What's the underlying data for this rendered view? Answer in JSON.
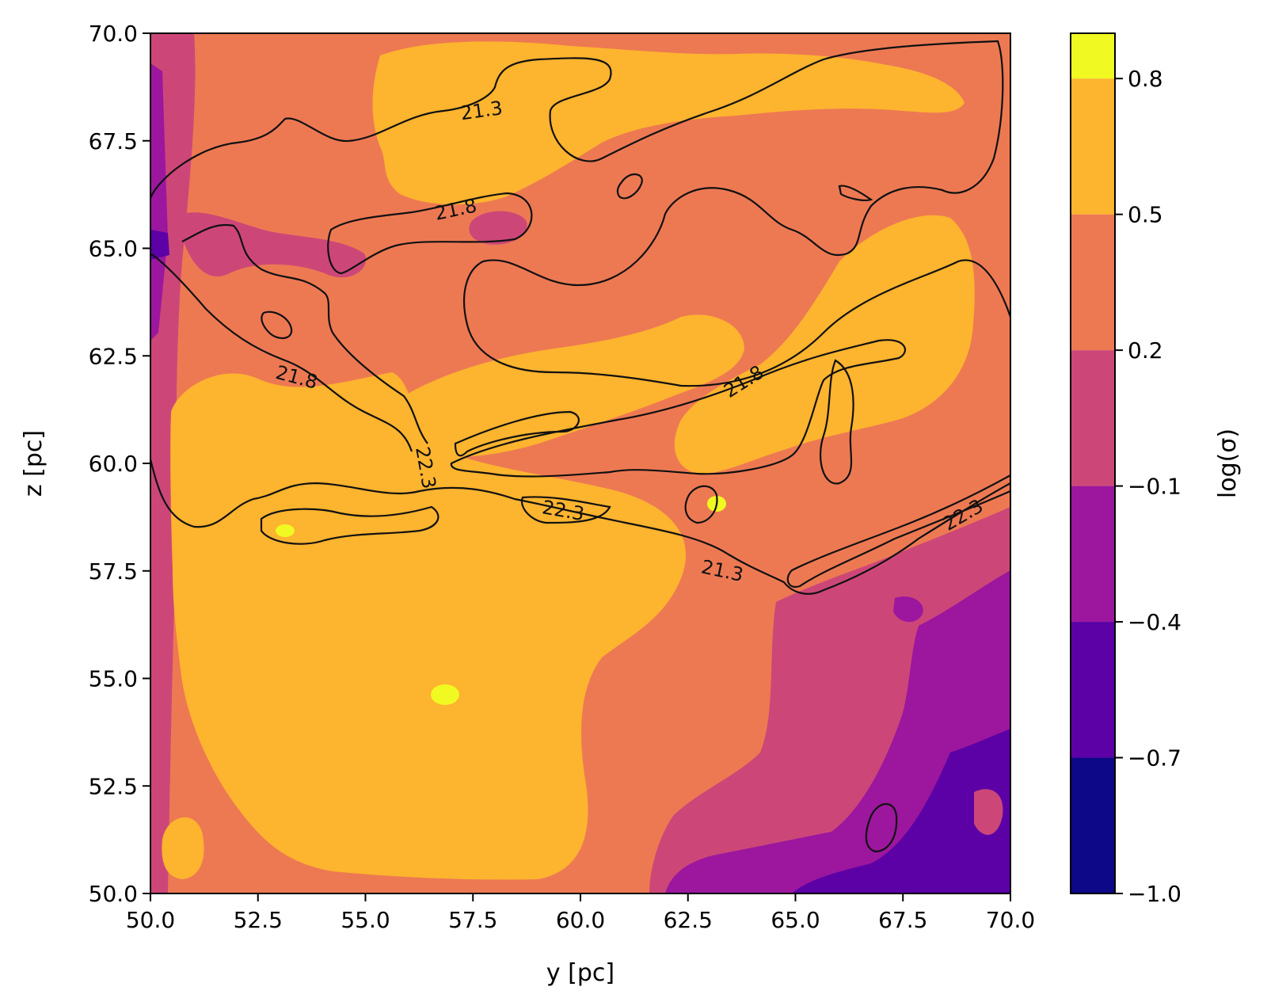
{
  "chart_data": {
    "type": "heatmap",
    "subtype": "filled contour map with line contours",
    "xlabel": "y [pc]",
    "ylabel": "z [pc]",
    "xlim": [
      50.0,
      70.0
    ],
    "ylim": [
      50.0,
      70.0
    ],
    "x_ticks": [
      "50.0",
      "52.5",
      "55.0",
      "57.5",
      "60.0",
      "62.5",
      "65.0",
      "67.5",
      "70.0"
    ],
    "y_ticks": [
      "50.0",
      "52.5",
      "55.0",
      "57.5",
      "60.0",
      "62.5",
      "65.0",
      "67.5",
      "70.0"
    ],
    "grid": false,
    "colorbar": {
      "label": "log(σ)",
      "range": [
        -1.0,
        0.9
      ],
      "ticks": [
        "0.8",
        "0.5",
        "0.2",
        "−0.1",
        "−0.4",
        "−0.7",
        "−1.0"
      ],
      "levels": [
        {
          "from": -1.0,
          "to": -0.7,
          "color": "#0d0887"
        },
        {
          "from": -0.7,
          "to": -0.4,
          "color": "#5c01a6"
        },
        {
          "from": -0.4,
          "to": -0.1,
          "color": "#9c179e"
        },
        {
          "from": -0.1,
          "to": 0.2,
          "color": "#cc4778"
        },
        {
          "from": 0.2,
          "to": 0.5,
          "color": "#ed7953"
        },
        {
          "from": 0.5,
          "to": 0.8,
          "color": "#fdb42f"
        },
        {
          "from": 0.8,
          "to": 0.9,
          "color": "#f0f921"
        }
      ]
    },
    "contour_levels": [
      "21.3",
      "21.8",
      "22.3"
    ],
    "contour_labels": [
      {
        "text": "21.3",
        "y": 57.7,
        "z": 68.2,
        "angle": -8
      },
      {
        "text": "21.8",
        "y": 57.1,
        "z": 65.9,
        "angle": -12
      },
      {
        "text": "21.8",
        "y": 53.4,
        "z": 62.0,
        "angle": 15
      },
      {
        "text": "22.3",
        "y": 56.4,
        "z": 59.9,
        "angle": 80
      },
      {
        "text": "22.3",
        "y": 59.6,
        "z": 58.9,
        "angle": 10
      },
      {
        "text": "21.8",
        "y": 63.8,
        "z": 61.9,
        "angle": -32
      },
      {
        "text": "21.3",
        "y": 63.3,
        "z": 57.5,
        "angle": 12
      },
      {
        "text": "22.3",
        "y": 68.9,
        "z": 58.8,
        "angle": -30
      }
    ]
  }
}
